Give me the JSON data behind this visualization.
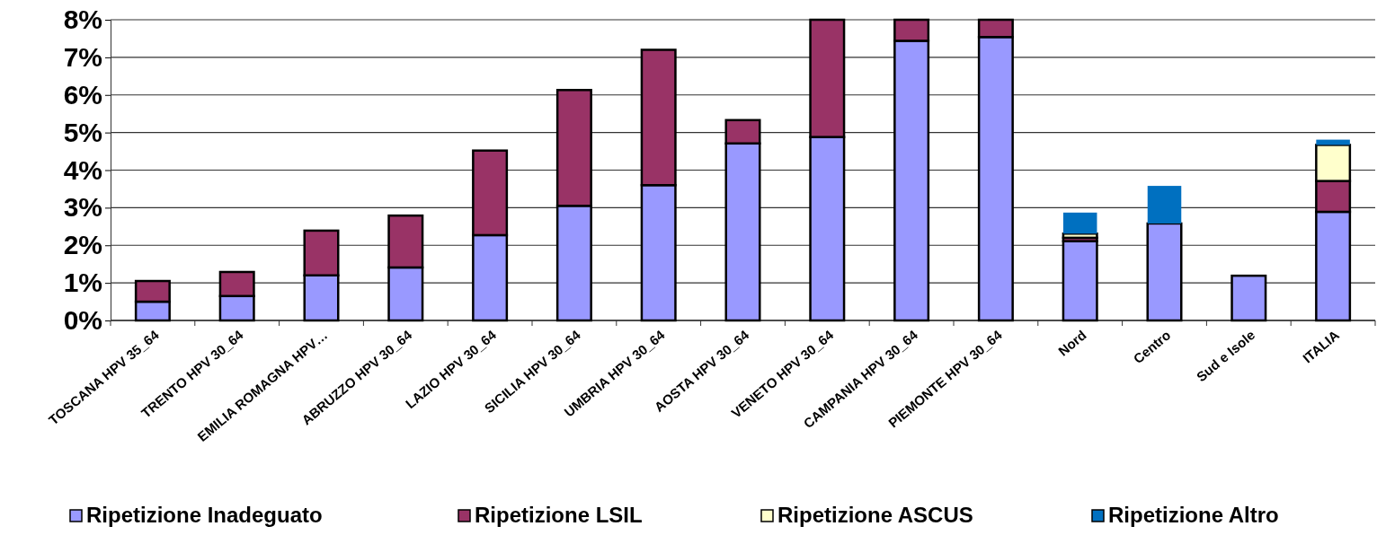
{
  "chart_data": {
    "type": "bar",
    "stacked": true,
    "categories": [
      "TOSCANA HPV 35_64",
      "TRENTO HPV 30_64",
      "EMILIA ROMAGNA HPV…",
      "ABRUZZO HPV 30_64",
      "LAZIO HPV 30_64",
      "SICILIA HPV 30_64",
      "UMBRIA HPV 30_64",
      "AOSTA HPV 30_64",
      "VENETO HPV 30_64",
      "CAMPANIA HPV 30_64",
      "PIEMONTE HPV 30_64",
      "Nord",
      "Centro",
      "Sud e Isole",
      "ITALIA"
    ],
    "series": [
      {
        "name": "Ripetizione Inadeguato",
        "color": "#9999ff",
        "values": [
          0.5,
          0.65,
          1.2,
          1.41,
          2.27,
          3.05,
          3.6,
          4.71,
          4.88,
          7.44,
          7.54,
          2.11,
          2.58,
          1.19,
          2.89
        ]
      },
      {
        "name": "Ripetizione LSIL",
        "color": "#993366",
        "values": [
          0.55,
          0.64,
          1.19,
          1.38,
          2.25,
          3.08,
          3.6,
          0.62,
          3.12,
          0.56,
          0.46,
          0.09,
          null,
          null,
          0.82
        ]
      },
      {
        "name": "Ripetizione ASCUS",
        "color": "#ffffcc",
        "values": [
          null,
          null,
          null,
          null,
          null,
          null,
          null,
          null,
          null,
          null,
          null,
          0.11,
          null,
          null,
          0.96
        ]
      },
      {
        "name": "Ripetizione Altro",
        "color": "#0070c0",
        "values": [
          null,
          null,
          null,
          null,
          null,
          null,
          null,
          null,
          null,
          null,
          null,
          0.56,
          1.0,
          null,
          0.14
        ]
      }
    ],
    "ylim": [
      0,
      8
    ],
    "yticks": [
      {
        "value": 0,
        "label": "0%"
      },
      {
        "value": 1,
        "label": "1%"
      },
      {
        "value": 2,
        "label": "2%"
      },
      {
        "value": 3,
        "label": "3%"
      },
      {
        "value": 4,
        "label": "4%"
      },
      {
        "value": 5,
        "label": "5%"
      },
      {
        "value": 6,
        "label": "6%"
      },
      {
        "value": 7,
        "label": "7%"
      },
      {
        "value": 8,
        "label": "8%"
      }
    ],
    "grid": "y",
    "legend": "bottom"
  }
}
